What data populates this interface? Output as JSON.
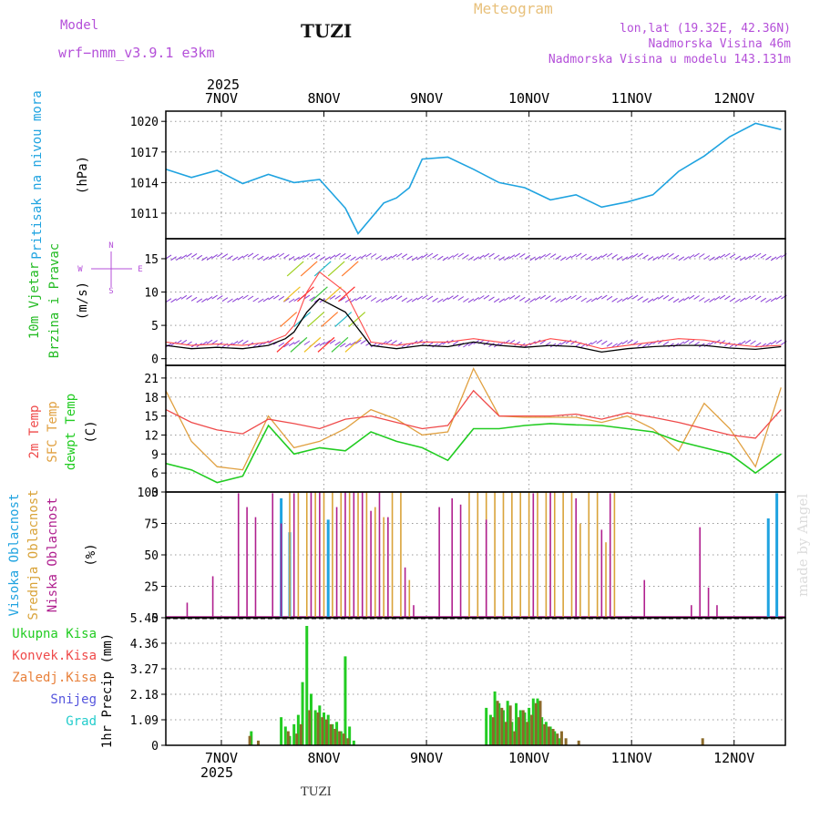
{
  "header": {
    "model_label": "Model",
    "model_name": "wrf−nmm_v3.9.1  e3km",
    "station": "TUZI",
    "product": "Meteogram",
    "coords": "lon,lat (19.32E, 42.36N)",
    "elevation": "Nadmorska Visina 46m",
    "model_elevation": "Nadmorska Visina u modelu 143.131m",
    "watermark": "made by Angel",
    "footer_station": "TUZI"
  },
  "colors": {
    "pressure": "#1fa3e0",
    "temp": "#ef4a4a",
    "sfc_temp": "#e0a040",
    "dewpt": "#22cc22",
    "high_cloud": "#1fa3e0",
    "mid_cloud": "#d9a339",
    "low_cloud": "#b0208f",
    "total_precip": "#22cc22",
    "conv_precip": "#ef4a4a",
    "frz_precip": "#e8803a",
    "snow": "#5555dd",
    "hail": "#22cccc",
    "wind_label": "#22bb22",
    "dir_label": "#b44fd9",
    "grid": "#999999"
  },
  "time_axis": {
    "year": "2025",
    "days": [
      "7NOV",
      "8NOV",
      "9NOV",
      "10NOV",
      "11NOV",
      "12NOV"
    ]
  },
  "labels": {
    "pressure": "Pritisak na nivou mora",
    "pressure_unit": "(hPa)",
    "wind1": "10m Vjetar",
    "wind2": "Brzina i Pravac",
    "wind_unit": "(m/s)",
    "dir_n": "N",
    "dir_s": "S",
    "dir_w": "W",
    "dir_e": "E",
    "temp1": "2m Temp",
    "temp2": "SFC Temp",
    "temp3": "dewpt Temp",
    "temp_unit": "(C)",
    "cloud1": "Visoka Oblacnost",
    "cloud2": "Srednja Oblacnost",
    "cloud3": "Niska Oblacnost",
    "cloud_unit": "(%)",
    "precip_unit": "1hr Precip (mm)",
    "legend_total": "Ukupna Kisa",
    "legend_conv": "Konvek.Kisa",
    "legend_frz": "Zaledj.Kisa",
    "legend_snow": "Snijeg",
    "legend_hail": "Grad"
  },
  "chart_data": [
    {
      "type": "line",
      "id": "pressure",
      "ylabel": "Pritisak na nivou mora (hPa)",
      "ylim": [
        1008.5,
        1021
      ],
      "yticks": [
        "1011",
        "1014",
        "1017",
        "1020"
      ],
      "x_hours": [
        0,
        6,
        12,
        18,
        24,
        30,
        36,
        42,
        45,
        48,
        51,
        54,
        57,
        60,
        66,
        72,
        78,
        84,
        90,
        96,
        102,
        108,
        114,
        120,
        126,
        132,
        138,
        144
      ],
      "series": [
        {
          "name": "MSLP",
          "values": [
            1015.3,
            1014.5,
            1015.2,
            1013.9,
            1014.8,
            1014,
            1014.3,
            1011.5,
            1009,
            1010.5,
            1012,
            1012.5,
            1013.5,
            1016.3,
            1016.5,
            1015.3,
            1014,
            1013.5,
            1012.3,
            1012.8,
            1011.6,
            1012.1,
            1012.8,
            1015.1,
            1016.6,
            1018.5,
            1019.8,
            1019.2
          ]
        }
      ]
    },
    {
      "type": "line",
      "id": "wind",
      "ylabel": "10m Vjetar Brzina i Pravac (m/s)",
      "ylim": [
        -1,
        18
      ],
      "yticks": [
        "0",
        "5",
        "10",
        "15"
      ],
      "x_hours": [
        0,
        6,
        12,
        18,
        24,
        28,
        30,
        33,
        36,
        42,
        48,
        54,
        60,
        66,
        72,
        78,
        84,
        90,
        96,
        102,
        108,
        114,
        120,
        126,
        132,
        138,
        144
      ],
      "series": [
        {
          "name": "Speed",
          "values": [
            2,
            1.5,
            1.7,
            1.5,
            2,
            3,
            4,
            7,
            9,
            7,
            2,
            1.5,
            2,
            1.8,
            2.5,
            2,
            1.7,
            2,
            1.8,
            1,
            1.5,
            1.8,
            2,
            2,
            1.6,
            1.4,
            1.8
          ]
        },
        {
          "name": "Gust",
          "values": [
            2.5,
            2,
            2.2,
            2,
            2.5,
            3.5,
            5,
            10,
            13,
            10,
            2.5,
            2,
            2.5,
            2.5,
            3,
            2.5,
            2,
            3,
            2.5,
            1.5,
            2,
            2.5,
            3,
            2.8,
            2.2,
            1.8,
            2
          ]
        }
      ]
    },
    {
      "type": "line",
      "id": "temperature",
      "ylabel": "Temp (C)",
      "ylim": [
        3,
        23
      ],
      "yticks": [
        "3",
        "6",
        "9",
        "12",
        "15",
        "18",
        "21"
      ],
      "x_hours": [
        0,
        6,
        12,
        18,
        24,
        30,
        36,
        42,
        48,
        54,
        60,
        66,
        72,
        78,
        84,
        90,
        96,
        102,
        108,
        114,
        120,
        126,
        132,
        138,
        144
      ],
      "series": [
        {
          "name": "2m Temp",
          "values": [
            16,
            14,
            12.8,
            12.2,
            14.5,
            13.8,
            13,
            14.5,
            15,
            14,
            13,
            13.5,
            19,
            15,
            15,
            15,
            15.3,
            14.5,
            15.5,
            14.8,
            14,
            13,
            12,
            11.5,
            16
          ]
        },
        {
          "name": "SFC Temp",
          "values": [
            19,
            11,
            7,
            6.5,
            15,
            10,
            11,
            13,
            16,
            14.5,
            12,
            12.5,
            22.5,
            15,
            14.8,
            14.8,
            14.8,
            14,
            15,
            13,
            9.5,
            17,
            13,
            7,
            19.5
          ]
        },
        {
          "name": "dewpt Temp",
          "values": [
            7.5,
            6.5,
            4.5,
            5.5,
            13.5,
            9,
            10,
            9.5,
            12.5,
            11,
            10,
            8,
            13,
            13,
            13.5,
            13.8,
            13.6,
            13.5,
            13,
            12.5,
            11,
            10,
            9,
            6,
            9
          ]
        }
      ]
    },
    {
      "type": "bar",
      "id": "cloud",
      "ylabel": "Oblacnost (%)",
      "ylim": [
        0,
        100
      ],
      "yticks": [
        "0",
        "25",
        "50",
        "75",
        "100"
      ],
      "series": [
        {
          "name": "Visoka Oblacnost",
          "x_hours": [
            27,
            29,
            38,
            141,
            143
          ],
          "values": [
            95,
            68,
            78,
            79,
            99
          ]
        },
        {
          "name": "Srednja Oblacnost",
          "x_hours": [
            29,
            31,
            33,
            35,
            37,
            39,
            41,
            43,
            45,
            47,
            49,
            51,
            53,
            55,
            57,
            71,
            73,
            75,
            77,
            79,
            81,
            83,
            85,
            87,
            89,
            91,
            93,
            95,
            97,
            99,
            101,
            103,
            105
          ],
          "values": [
            100,
            100,
            100,
            100,
            100,
            100,
            100,
            100,
            100,
            100,
            88,
            80,
            100,
            100,
            30,
            100,
            100,
            100,
            100,
            100,
            100,
            100,
            100,
            100,
            100,
            100,
            100,
            100,
            75,
            100,
            100,
            60,
            100
          ]
        },
        {
          "name": "Niska Oblacnost",
          "x_hours": [
            5,
            11,
            17,
            19,
            21,
            25,
            27,
            30,
            34,
            36,
            40,
            42,
            44,
            46,
            48,
            50,
            52,
            56,
            58,
            64,
            67,
            69,
            75,
            86,
            90,
            96,
            102,
            104,
            112,
            123,
            125,
            127,
            129
          ],
          "values": [
            12,
            33,
            99,
            88,
            80,
            99,
            75,
            99,
            100,
            100,
            88,
            100,
            100,
            100,
            85,
            100,
            80,
            40,
            10,
            88,
            95,
            90,
            78,
            99,
            100,
            95,
            70,
            99,
            30,
            10,
            72,
            24,
            10
          ]
        }
      ]
    },
    {
      "type": "bar",
      "id": "precip",
      "ylabel": "1hr Precip (mm)",
      "ylim": [
        0,
        5.45
      ],
      "yticks": [
        "0",
        "1.09",
        "2.18",
        "3.27",
        "4.36",
        "5.45"
      ],
      "series": [
        {
          "name": "Ukupna Kisa",
          "x_hours": [
            20,
            27,
            28,
            29,
            30,
            31,
            32,
            33,
            34,
            35,
            36,
            37,
            38,
            39,
            40,
            41,
            42,
            43,
            44,
            75,
            76,
            77,
            78,
            79,
            80,
            81,
            82,
            83,
            84,
            85,
            86,
            87,
            88,
            89,
            90,
            91,
            92
          ],
          "values": [
            0.6,
            1.2,
            0.8,
            0.4,
            0.9,
            1.3,
            2.7,
            5.1,
            2.2,
            1.5,
            1.7,
            1.4,
            1.3,
            0.9,
            1.0,
            0.6,
            3.8,
            0.8,
            0.2,
            1.6,
            1.3,
            2.3,
            1.8,
            1.5,
            1.9,
            1.0,
            1.8,
            1.5,
            1.4,
            1.6,
            2.0,
            2.0,
            1.2,
            1.0,
            0.8,
            0.6,
            0.3
          ]
        },
        {
          "name": "Konvek.Kisa",
          "x_hours": [
            19,
            21,
            28,
            30,
            31,
            33,
            35,
            36,
            37,
            38,
            39,
            40,
            41,
            42,
            76,
            77,
            78,
            79,
            80,
            81,
            82,
            83,
            84,
            85,
            86,
            87,
            88,
            89,
            90,
            91,
            92,
            93,
            96,
            125
          ],
          "values": [
            0.4,
            0.2,
            0.6,
            0.5,
            0.9,
            1.5,
            1.4,
            1.2,
            1.1,
            0.9,
            0.7,
            0.6,
            0.5,
            0.3,
            1.2,
            1.9,
            1.6,
            1.0,
            1.7,
            0.6,
            1.2,
            1.5,
            1.0,
            1.3,
            1.8,
            1.9,
            0.9,
            0.8,
            0.7,
            0.5,
            0.6,
            0.3,
            0.2,
            0.3
          ]
        }
      ]
    }
  ]
}
